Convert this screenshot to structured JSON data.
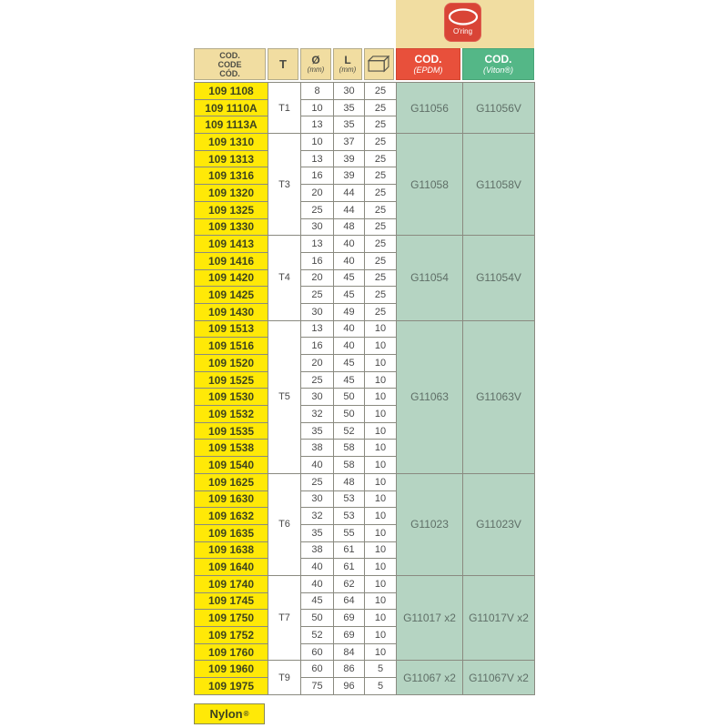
{
  "oring": {
    "label": "O'ring",
    "badge_color": "#d94436"
  },
  "footer": {
    "nylon_label": "Nylon",
    "nylon_reg": "®"
  },
  "colors": {
    "tan": "#f1dda1",
    "yellow": "#ffe907",
    "red_header": "#e8503b",
    "green_header": "#54b787",
    "green_cell": "#b5d4c2"
  },
  "chart_data": {
    "type": "table",
    "header": {
      "code_lines": [
        "COD.",
        "CODE",
        "CÓD."
      ],
      "t": "T",
      "diameter_sym": "Ø",
      "diameter_unit": "(mm)",
      "length_sym": "L",
      "length_unit": "(mm)",
      "qty_icon": "box-icon",
      "epdm_title": "COD.",
      "epdm_sub": "(EPDM)",
      "viton_title": "COD.",
      "viton_sub": "(Viton®)"
    },
    "groups": [
      {
        "t": "T1",
        "epdm": "G11056",
        "viton": "G11056V",
        "rows": [
          {
            "code": "109 1108",
            "d": "8",
            "l": "30",
            "qty": "25"
          },
          {
            "code": "109 1110A",
            "d": "10",
            "l": "35",
            "qty": "25"
          },
          {
            "code": "109 1113A",
            "d": "13",
            "l": "35",
            "qty": "25"
          }
        ]
      },
      {
        "t": "T3",
        "epdm": "G11058",
        "viton": "G11058V",
        "rows": [
          {
            "code": "109 1310",
            "d": "10",
            "l": "37",
            "qty": "25"
          },
          {
            "code": "109 1313",
            "d": "13",
            "l": "39",
            "qty": "25"
          },
          {
            "code": "109 1316",
            "d": "16",
            "l": "39",
            "qty": "25"
          },
          {
            "code": "109 1320",
            "d": "20",
            "l": "44",
            "qty": "25"
          },
          {
            "code": "109 1325",
            "d": "25",
            "l": "44",
            "qty": "25"
          },
          {
            "code": "109 1330",
            "d": "30",
            "l": "48",
            "qty": "25"
          }
        ]
      },
      {
        "t": "T4",
        "epdm": "G11054",
        "viton": "G11054V",
        "rows": [
          {
            "code": "109 1413",
            "d": "13",
            "l": "40",
            "qty": "25"
          },
          {
            "code": "109 1416",
            "d": "16",
            "l": "40",
            "qty": "25"
          },
          {
            "code": "109 1420",
            "d": "20",
            "l": "45",
            "qty": "25"
          },
          {
            "code": "109 1425",
            "d": "25",
            "l": "45",
            "qty": "25"
          },
          {
            "code": "109 1430",
            "d": "30",
            "l": "49",
            "qty": "25"
          }
        ]
      },
      {
        "t": "T5",
        "epdm": "G11063",
        "viton": "G11063V",
        "rows": [
          {
            "code": "109 1513",
            "d": "13",
            "l": "40",
            "qty": "10"
          },
          {
            "code": "109 1516",
            "d": "16",
            "l": "40",
            "qty": "10"
          },
          {
            "code": "109 1520",
            "d": "20",
            "l": "45",
            "qty": "10"
          },
          {
            "code": "109 1525",
            "d": "25",
            "l": "45",
            "qty": "10"
          },
          {
            "code": "109 1530",
            "d": "30",
            "l": "50",
            "qty": "10"
          },
          {
            "code": "109 1532",
            "d": "32",
            "l": "50",
            "qty": "10"
          },
          {
            "code": "109 1535",
            "d": "35",
            "l": "52",
            "qty": "10"
          },
          {
            "code": "109 1538",
            "d": "38",
            "l": "58",
            "qty": "10"
          },
          {
            "code": "109 1540",
            "d": "40",
            "l": "58",
            "qty": "10"
          }
        ]
      },
      {
        "t": "T6",
        "epdm": "G11023",
        "viton": "G11023V",
        "rows": [
          {
            "code": "109 1625",
            "d": "25",
            "l": "48",
            "qty": "10"
          },
          {
            "code": "109 1630",
            "d": "30",
            "l": "53",
            "qty": "10"
          },
          {
            "code": "109 1632",
            "d": "32",
            "l": "53",
            "qty": "10"
          },
          {
            "code": "109 1635",
            "d": "35",
            "l": "55",
            "qty": "10"
          },
          {
            "code": "109 1638",
            "d": "38",
            "l": "61",
            "qty": "10"
          },
          {
            "code": "109 1640",
            "d": "40",
            "l": "61",
            "qty": "10"
          }
        ]
      },
      {
        "t": "T7",
        "epdm": "G11017 x2",
        "viton": "G11017V x2",
        "rows": [
          {
            "code": "109 1740",
            "d": "40",
            "l": "62",
            "qty": "10"
          },
          {
            "code": "109 1745",
            "d": "45",
            "l": "64",
            "qty": "10"
          },
          {
            "code": "109 1750",
            "d": "50",
            "l": "69",
            "qty": "10"
          },
          {
            "code": "109 1752",
            "d": "52",
            "l": "69",
            "qty": "10"
          },
          {
            "code": "109 1760",
            "d": "60",
            "l": "84",
            "qty": "10"
          }
        ]
      },
      {
        "t": "T9",
        "epdm": "G11067 x2",
        "viton": "G11067V x2",
        "rows": [
          {
            "code": "109 1960",
            "d": "60",
            "l": "86",
            "qty": "5"
          },
          {
            "code": "109 1975",
            "d": "75",
            "l": "96",
            "qty": "5"
          }
        ]
      }
    ]
  }
}
